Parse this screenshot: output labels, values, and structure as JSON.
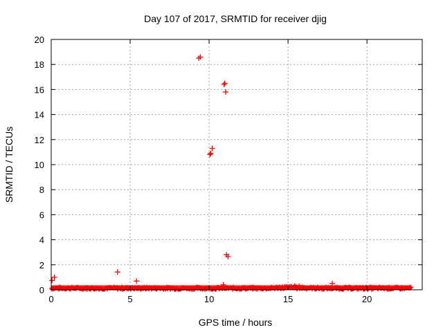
{
  "chart_data": {
    "type": "scatter",
    "title": "Day 107 of 2017, SRMTID for receiver djig",
    "xlabel": "GPS time / hours",
    "ylabel": "SRMTID / TECUs",
    "xlim": [
      0,
      23.5
    ],
    "ylim": [
      0,
      20
    ],
    "xticks": [
      0,
      5,
      10,
      15,
      20
    ],
    "yticks": [
      0,
      2,
      4,
      6,
      8,
      10,
      12,
      14,
      16,
      18,
      20
    ],
    "grid": true,
    "marker": "plus",
    "colors": {
      "points": "#ff0000",
      "grid": "#a0a0a0",
      "axes": "#000000"
    },
    "baseline_band": {
      "x_range": [
        0,
        22.8
      ],
      "y_range": [
        0.0,
        0.25
      ],
      "note_peak_x": 15.3,
      "note_peak_y": 0.45
    },
    "outliers": [
      {
        "x": 0.05,
        "y": 0.75
      },
      {
        "x": 0.2,
        "y": 1.0
      },
      {
        "x": 4.2,
        "y": 1.42
      },
      {
        "x": 5.4,
        "y": 0.7
      },
      {
        "x": 9.35,
        "y": 18.5
      },
      {
        "x": 9.45,
        "y": 18.6
      },
      {
        "x": 10.05,
        "y": 10.8
      },
      {
        "x": 10.1,
        "y": 10.9
      },
      {
        "x": 10.2,
        "y": 11.3
      },
      {
        "x": 10.95,
        "y": 16.4
      },
      {
        "x": 11.0,
        "y": 16.5
      },
      {
        "x": 11.05,
        "y": 15.8
      },
      {
        "x": 11.1,
        "y": 2.8
      },
      {
        "x": 11.2,
        "y": 2.65
      },
      {
        "x": 10.9,
        "y": 0.4
      },
      {
        "x": 17.8,
        "y": 0.5
      }
    ]
  }
}
